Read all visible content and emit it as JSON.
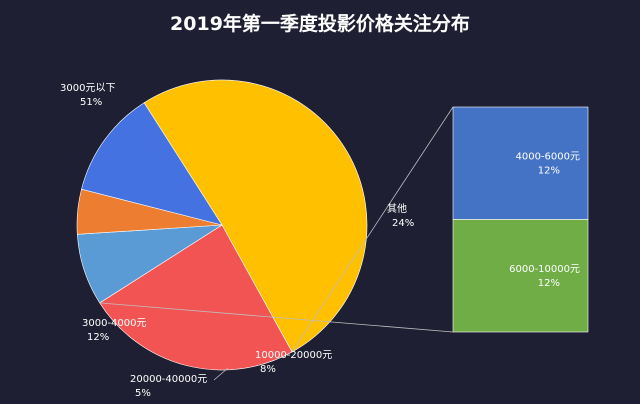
{
  "chart_data": {
    "type": "pie",
    "title": "2019年第一季度投影价格关注分布",
    "slices": [
      {
        "label": "3000元以下",
        "value": 51,
        "pct_label": "51%",
        "color": "#ffc000"
      },
      {
        "label": "其他",
        "value": 24,
        "pct_label": "24%",
        "color": "#f25454"
      },
      {
        "label": "10000-20000元",
        "value": 8,
        "pct_label": "8%",
        "color": "#5b9bd5"
      },
      {
        "label": "20000-40000元",
        "value": 5,
        "pct_label": "5%",
        "color": "#ed7d31"
      },
      {
        "label": "3000-4000元",
        "value": 12,
        "pct_label": "12%",
        "color": "#4472e0"
      }
    ],
    "breakdown": {
      "of": "其他",
      "segments": [
        {
          "label": "4000-6000元",
          "value": 12,
          "pct_label": "12%",
          "color": "#4472c4"
        },
        {
          "label": "6000-10000元",
          "value": 12,
          "pct_label": "12%",
          "color": "#70ad47"
        }
      ]
    },
    "legend": "none"
  }
}
